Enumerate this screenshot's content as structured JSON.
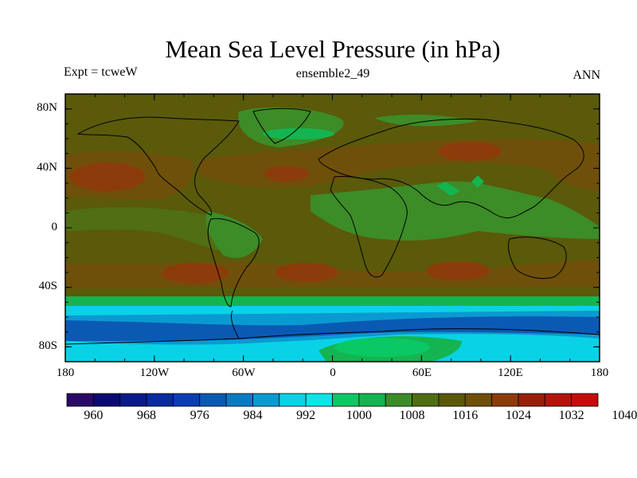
{
  "title": "Mean Sea Level Pressure (in hPa)",
  "subtitle_left": "Expt = tcweW",
  "subtitle_center": "ensemble2_49",
  "subtitle_right": "ANN",
  "lat_labels": [
    "80N",
    "40N",
    "0",
    "40S",
    "80S"
  ],
  "lon_labels": [
    "180",
    "120W",
    "60W",
    "0",
    "60E",
    "120E",
    "180"
  ],
  "colorbar": {
    "colors": [
      "#2a0a66",
      "#0a0a73",
      "#0a1a8a",
      "#0a2aa0",
      "#0a3cb4",
      "#0a5ab4",
      "#0a7ac0",
      "#0a9ad2",
      "#0ad2e6",
      "#0ae6e6",
      "#0ac864",
      "#14b450",
      "#3c8c28",
      "#506e14",
      "#5a5a0a",
      "#6e500a",
      "#8c3c0a",
      "#961e0a",
      "#b4140a",
      "#c80a0a"
    ],
    "labels": [
      "960",
      "968",
      "976",
      "984",
      "992",
      "1000",
      "1008",
      "1016",
      "1024",
      "1032",
      "1040"
    ]
  },
  "map_colors": {
    "background": "#5a5a0a",
    "high": "#8c3c0a",
    "green": "#3c8c28",
    "bright_green": "#14b450",
    "teal": "#0ac864",
    "cyan": "#0ad2e6",
    "light_blue": "#0a9ad2",
    "blue": "#0a5ab4"
  }
}
